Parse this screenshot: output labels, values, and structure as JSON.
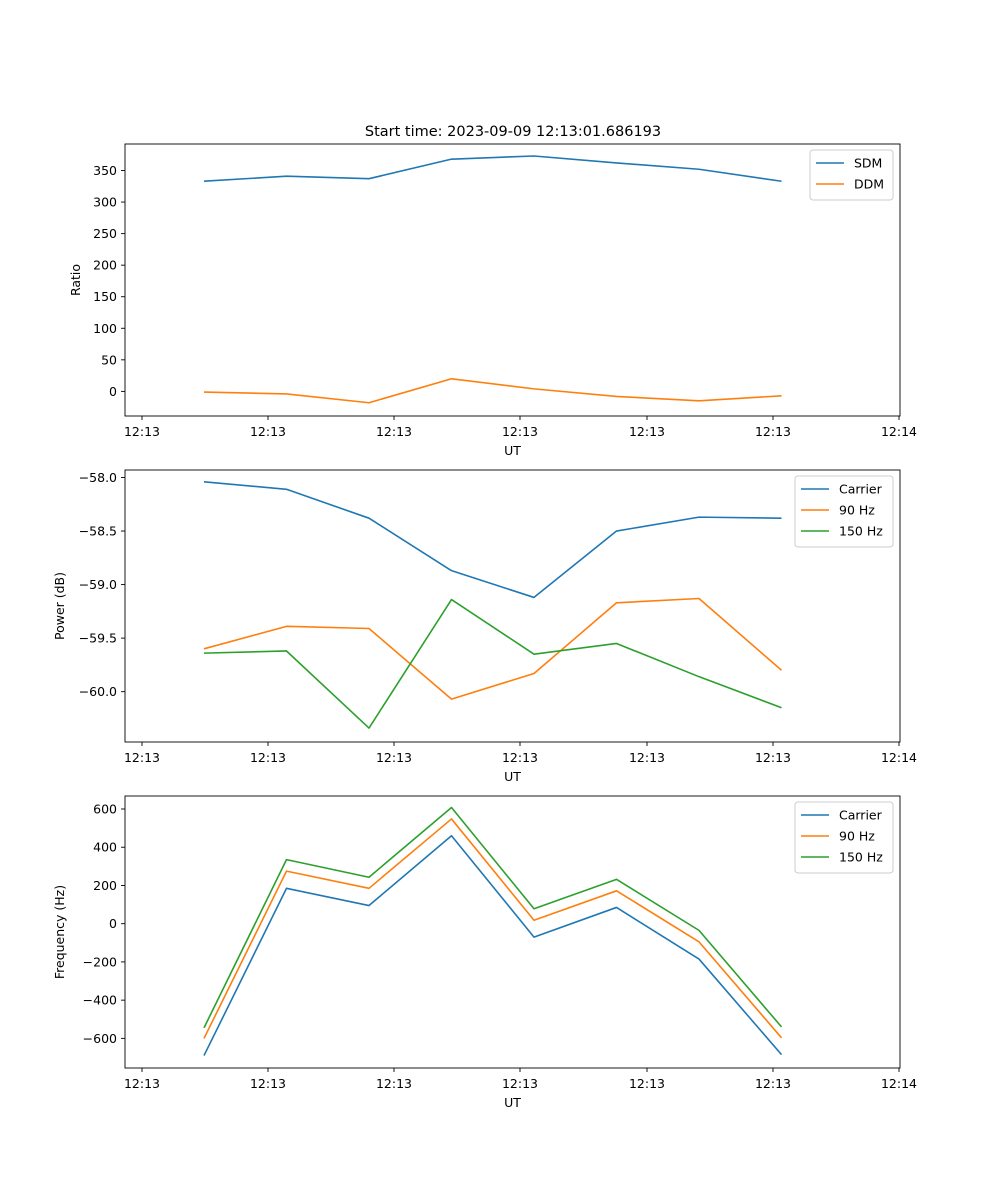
{
  "figure_title": "Start time: 2023-09-09 12:13:01.686193",
  "colors": {
    "blue": "#1f77b4",
    "orange": "#ff7f0e",
    "green": "#2ca02c"
  },
  "chart_data": [
    {
      "type": "line",
      "title": "Start time: 2023-09-09 12:13:01.686193",
      "xlabel": "UT",
      "ylabel": "Ratio",
      "x_tick_labels": [
        "12:13",
        "12:13",
        "12:13",
        "12:13",
        "12:13",
        "12:13",
        "12:14"
      ],
      "y_ticks": [
        0,
        50,
        100,
        150,
        200,
        250,
        300,
        350
      ],
      "y_tick_labels": [
        "0",
        "50",
        "100",
        "150",
        "200",
        "250",
        "300",
        "350"
      ],
      "ylim": [
        -39,
        392
      ],
      "legend_position": "top-right",
      "series": [
        {
          "name": "SDM",
          "color": "#1f77b4",
          "values": [
            333,
            341,
            337,
            368,
            373,
            362,
            352,
            333
          ]
        },
        {
          "name": "DDM",
          "color": "#ff7f0e",
          "values": [
            -1,
            -4,
            -18,
            20,
            4,
            -8,
            -15,
            -7
          ]
        }
      ]
    },
    {
      "type": "line",
      "title": "",
      "xlabel": "UT",
      "ylabel": "Power (dB)",
      "x_tick_labels": [
        "12:13",
        "12:13",
        "12:13",
        "12:13",
        "12:13",
        "12:13",
        "12:14"
      ],
      "y_ticks": [
        -60.0,
        -59.5,
        -59.0,
        -58.5,
        -58.0
      ],
      "y_tick_labels": [
        "−60.0",
        "−59.5",
        "−59.0",
        "−58.5",
        "−58.0"
      ],
      "ylim": [
        -60.47,
        -57.93
      ],
      "legend_position": "top-right",
      "series": [
        {
          "name": "Carrier",
          "color": "#1f77b4",
          "values": [
            -58.04,
            -58.11,
            -58.38,
            -58.87,
            -59.12,
            -58.5,
            -58.37,
            -58.38
          ]
        },
        {
          "name": "90 Hz",
          "color": "#ff7f0e",
          "values": [
            -59.6,
            -59.39,
            -59.41,
            -60.07,
            -59.83,
            -59.17,
            -59.13,
            -59.8
          ]
        },
        {
          "name": "150 Hz",
          "color": "#2ca02c",
          "values": [
            -59.64,
            -59.62,
            -60.34,
            -59.14,
            -59.65,
            -59.55,
            -59.86,
            -60.15
          ]
        }
      ]
    },
    {
      "type": "line",
      "title": "",
      "xlabel": "UT",
      "ylabel": "Frequency (Hz)",
      "x_tick_labels": [
        "12:13",
        "12:13",
        "12:13",
        "12:13",
        "12:13",
        "12:13",
        "12:14"
      ],
      "y_ticks": [
        -600,
        -400,
        -200,
        0,
        200,
        400,
        600
      ],
      "y_tick_labels": [
        "−600",
        "−400",
        "−200",
        "0",
        "200",
        "400",
        "600"
      ],
      "ylim": [
        -755,
        668
      ],
      "legend_position": "top-right",
      "series": [
        {
          "name": "Carrier",
          "color": "#1f77b4",
          "values": [
            -690,
            185,
            95,
            460,
            -70,
            85,
            -185,
            -685
          ]
        },
        {
          "name": "90 Hz",
          "color": "#ff7f0e",
          "values": [
            -600,
            275,
            185,
            548,
            18,
            172,
            -95,
            -597
          ]
        },
        {
          "name": "150 Hz",
          "color": "#2ca02c",
          "values": [
            -545,
            335,
            243,
            608,
            78,
            232,
            -35,
            -540
          ]
        }
      ]
    }
  ]
}
